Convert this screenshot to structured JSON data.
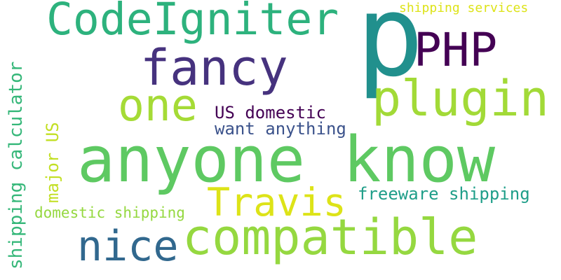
{
  "words": {
    "p": {
      "text": "p",
      "color": "#21908d"
    },
    "anyone_know": {
      "text": "anyone know",
      "color": "#5ec962"
    },
    "codeigniter": {
      "text": "CodeIgniter",
      "color": "#2db27d"
    },
    "fancy": {
      "text": "fancy",
      "color": "#46327e"
    },
    "php": {
      "text": "PHP",
      "color": "#440154"
    },
    "plugin": {
      "text": "plugin",
      "color": "#a2da37"
    },
    "one": {
      "text": "one",
      "color": "#a5db36"
    },
    "compatible": {
      "text": "compatible",
      "color": "#95d840"
    },
    "nice": {
      "text": "nice",
      "color": "#31688e"
    },
    "travis": {
      "text": "Travis",
      "color": "#dde318"
    },
    "us_domestic": {
      "text": "US domestic",
      "color": "#440154"
    },
    "want_anything": {
      "text": "want anything",
      "color": "#3b528b"
    },
    "shipping_services": {
      "text": "shipping services",
      "color": "#dde318"
    },
    "freeware_shipping": {
      "text": "freeware shipping",
      "color": "#1f9e89"
    },
    "domestic_shipping": {
      "text": "domestic shipping",
      "color": "#95d840"
    },
    "shipping_calculator": {
      "text": "shipping calculator",
      "color": "#35b779",
      "orientation": "vertical"
    },
    "major_us": {
      "text": "major US",
      "color": "#c2df23",
      "orientation": "vertical"
    }
  }
}
